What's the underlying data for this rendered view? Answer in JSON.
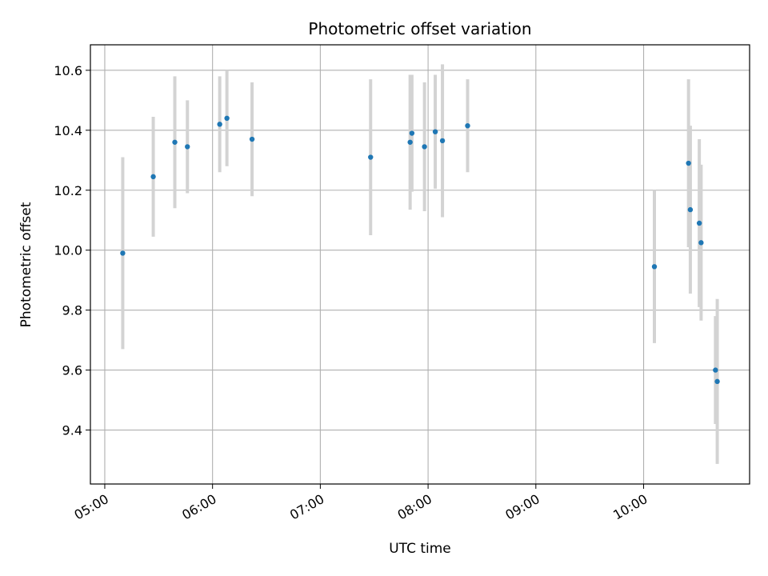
{
  "chart_data": {
    "type": "scatter",
    "title": "Photometric offset variation",
    "xlabel": "UTC time",
    "ylabel": "Photometric offset",
    "xlim": [
      "04:52",
      "10:59"
    ],
    "ylim": [
      9.22,
      10.685
    ],
    "grid": true,
    "x_ticks": [
      "05:00",
      "06:00",
      "07:00",
      "08:00",
      "09:00",
      "10:00"
    ],
    "y_ticks": [
      9.4,
      9.6,
      9.8,
      10.0,
      10.2,
      10.4,
      10.6
    ],
    "y_tick_labels": [
      "9.4",
      "9.6",
      "9.8",
      "10.0",
      "10.2",
      "10.4",
      "10.6"
    ],
    "marker_color": "#1f77b4",
    "errorbar_color": "#d3d3d3",
    "points": [
      {
        "x": "05:10",
        "y": 9.99,
        "yerr": 0.32
      },
      {
        "x": "05:27",
        "y": 10.245,
        "yerr": 0.2
      },
      {
        "x": "05:39",
        "y": 10.36,
        "yerr": 0.22
      },
      {
        "x": "05:46",
        "y": 10.345,
        "yerr": 0.155
      },
      {
        "x": "06:04",
        "y": 10.42,
        "yerr": 0.16
      },
      {
        "x": "06:08",
        "y": 10.44,
        "yerr": 0.16
      },
      {
        "x": "06:22",
        "y": 10.37,
        "yerr": 0.19
      },
      {
        "x": "07:28",
        "y": 10.31,
        "yerr": 0.26
      },
      {
        "x": "07:50",
        "y": 10.36,
        "yerr": 0.225
      },
      {
        "x": "07:51",
        "y": 10.39,
        "yerr": 0.195
      },
      {
        "x": "07:58",
        "y": 10.345,
        "yerr": 0.215
      },
      {
        "x": "08:04",
        "y": 10.395,
        "yerr": 0.19
      },
      {
        "x": "08:08",
        "y": 10.365,
        "yerr": 0.255
      },
      {
        "x": "08:22",
        "y": 10.415,
        "yerr": 0.155
      },
      {
        "x": "10:06",
        "y": 9.945,
        "yerr": 0.255
      },
      {
        "x": "10:25",
        "y": 10.29,
        "yerr": 0.28
      },
      {
        "x": "10:26",
        "y": 10.135,
        "yerr": 0.28
      },
      {
        "x": "10:31",
        "y": 10.09,
        "yerr": 0.28
      },
      {
        "x": "10:32",
        "y": 10.025,
        "yerr": 0.26
      },
      {
        "x": "10:40",
        "y": 9.6,
        "yerr": 0.18
      },
      {
        "x": "10:41",
        "y": 9.562,
        "yerr": 0.275
      }
    ]
  }
}
